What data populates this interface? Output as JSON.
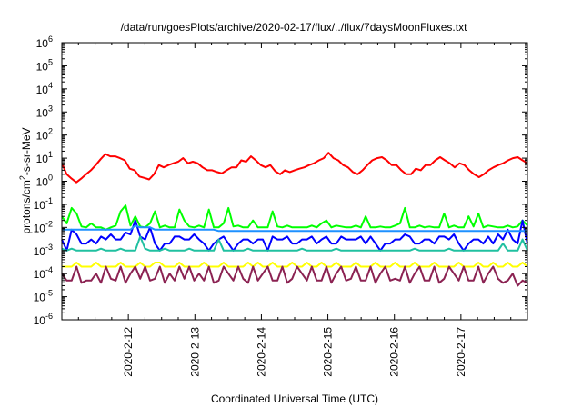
{
  "chart_data": {
    "type": "line",
    "title": "/data/run/goesPlots/archive/2020-02-17/flux/../flux/7daysMoonFluxes.txt",
    "xlabel": "Coordinated Universal Time (UTC)",
    "ylabel": "protons/cm2-s-sr-MeV",
    "ylabel_parts": {
      "base": "protons/cm",
      "sup": "2",
      "rest": "-s-sr-MeV"
    },
    "y_scale": "log",
    "ylim": [
      1e-06,
      1000000.0
    ],
    "y_tick_base": "10",
    "y_tick_exponents": [
      "-6",
      "-5",
      "-4",
      "-3",
      "-2",
      "-1",
      "0",
      "1",
      "2",
      "3",
      "4",
      "5",
      "6"
    ],
    "xlim_days": [
      0,
      7
    ],
    "x_tick_labels": [
      "2020-2-12",
      "2020-2-13",
      "2020-2-14",
      "2020-2-15",
      "2020-2-16",
      "2020-2-17"
    ],
    "x_tick_days": [
      1,
      2,
      3,
      4,
      5,
      6
    ],
    "grid": false,
    "legend": "none",
    "series": [
      {
        "color": "#ff0000",
        "values": [
          6,
          2,
          1.3,
          0.9,
          1.3,
          2,
          3,
          5,
          9,
          15,
          12,
          12,
          10,
          8,
          3.5,
          3,
          1.6,
          1.4,
          1.2,
          2,
          5,
          4,
          5,
          6,
          7,
          10,
          6,
          7,
          6,
          4,
          3,
          3,
          2.5,
          2.2,
          3,
          4,
          4,
          8,
          7,
          12,
          8,
          5,
          4,
          5,
          2.7,
          2,
          3,
          2.5,
          3,
          3.5,
          4,
          5,
          6,
          8,
          10,
          17,
          10,
          8,
          5,
          4,
          2.5,
          2,
          3,
          5,
          8,
          10,
          11,
          8,
          5,
          5,
          3,
          2,
          2,
          3.5,
          3,
          5,
          5,
          8,
          11,
          8,
          6,
          4,
          6,
          5,
          3,
          2,
          1.5,
          2,
          3,
          4,
          5,
          6,
          8,
          10,
          11,
          8,
          6
        ]
      },
      {
        "color": "#00ff00",
        "values": [
          0.03,
          0.015,
          0.07,
          0.04,
          0.011,
          0.01,
          0.015,
          0.01,
          0.01,
          0.008,
          0.01,
          0.012,
          0.05,
          0.09,
          0.012,
          0.03,
          0.011,
          0.01,
          0.015,
          0.05,
          0.01,
          0.012,
          0.01,
          0.01,
          0.06,
          0.02,
          0.011,
          0.01,
          0.012,
          0.01,
          0.06,
          0.01,
          0.01,
          0.015,
          0.07,
          0.011,
          0.012,
          0.01,
          0.01,
          0.02,
          0.01,
          0.01,
          0.01,
          0.05,
          0.011,
          0.01,
          0.012,
          0.01,
          0.01,
          0.01,
          0.01,
          0.012,
          0.01,
          0.015,
          0.02,
          0.01,
          0.012,
          0.011,
          0.01,
          0.01,
          0.012,
          0.01,
          0.03,
          0.01,
          0.01,
          0.011,
          0.01,
          0.01,
          0.012,
          0.015,
          0.07,
          0.01,
          0.01,
          0.012,
          0.01,
          0.011,
          0.01,
          0.01,
          0.04,
          0.01,
          0.012,
          0.01,
          0.01,
          0.03,
          0.011,
          0.04,
          0.01,
          0.012,
          0.011,
          0.01,
          0.01,
          0.012,
          0.01,
          0.011,
          0.02,
          0.012
        ]
      },
      {
        "color": "#0000ff",
        "values": [
          0.003,
          0.001,
          0.008,
          0.005,
          0.002,
          0.002,
          0.003,
          0.002,
          0.004,
          0.003,
          0.005,
          0.003,
          0.003,
          0.006,
          0.005,
          0.02,
          0.004,
          0.003,
          0.01,
          0.002,
          0.001,
          0.002,
          0.002,
          0.004,
          0.004,
          0.003,
          0.003,
          0.005,
          0.003,
          0.002,
          0.001,
          0.002,
          0.003,
          0.004,
          0.002,
          0.001,
          0.002,
          0.003,
          0.003,
          0.002,
          0.003,
          0.003,
          0.001,
          0.004,
          0.003,
          0.003,
          0.004,
          0.002,
          0.002,
          0.003,
          0.003,
          0.004,
          0.002,
          0.003,
          0.004,
          0.002,
          0.002,
          0.004,
          0.003,
          0.003,
          0.003,
          0.004,
          0.002,
          0.004,
          0.002,
          0.001,
          0.002,
          0.002,
          0.003,
          0.003,
          0.005,
          0.004,
          0.002,
          0.002,
          0.003,
          0.003,
          0.002,
          0.004,
          0.004,
          0.003,
          0.005,
          0.002,
          0.001,
          0.002,
          0.003,
          0.003,
          0.002,
          0.004,
          0.002,
          0.005,
          0.003,
          0.008,
          0.003,
          0.002,
          0.02,
          0.002
        ]
      },
      {
        "color": "#1e90ff",
        "values": [
          0.008,
          0.008,
          0.008,
          0.008,
          0.008,
          0.008,
          0.008,
          0.008,
          0.008,
          0.008,
          0.008,
          0.008,
          0.008,
          0.008,
          0.008,
          0.012,
          0.01,
          0.01,
          0.01,
          0.008,
          0.008,
          0.008,
          0.008,
          0.008,
          0.008,
          0.008,
          0.008,
          0.008,
          0.008,
          0.008,
          0.008,
          0.008,
          0.007,
          0.007,
          0.007,
          0.007,
          0.007,
          0.007,
          0.007,
          0.007,
          0.007,
          0.007,
          0.007,
          0.007,
          0.007,
          0.007,
          0.007,
          0.007,
          0.007,
          0.007,
          0.007,
          0.007,
          0.007,
          0.007,
          0.007,
          0.007,
          0.007,
          0.007,
          0.007,
          0.007,
          0.007,
          0.007,
          0.007,
          0.007,
          0.007,
          0.007,
          0.007,
          0.007,
          0.007,
          0.007,
          0.007,
          0.007,
          0.007,
          0.007,
          0.007,
          0.007,
          0.007,
          0.007,
          0.007,
          0.007,
          0.007,
          0.007,
          0.007,
          0.007,
          0.007,
          0.007,
          0.007,
          0.007,
          0.007,
          0.007,
          0.007,
          0.007,
          0.007,
          0.007,
          0.007,
          0.007
        ]
      },
      {
        "color": "#20c0a0",
        "values": [
          0.0012,
          0.001,
          0.0012,
          0.001,
          0.001,
          0.001,
          0.001,
          0.001,
          0.0012,
          0.001,
          0.001,
          0.001,
          0.0012,
          0.001,
          0.001,
          0.001,
          0.004,
          0.0012,
          0.001,
          0.001,
          0.001,
          0.0012,
          0.001,
          0.001,
          0.001,
          0.001,
          0.0012,
          0.001,
          0.001,
          0.001,
          0.001,
          0.001,
          0.003,
          0.001,
          0.001,
          0.001,
          0.001,
          0.001,
          0.0012,
          0.001,
          0.001,
          0.001,
          0.001,
          0.001,
          0.001,
          0.001,
          0.001,
          0.001,
          0.001,
          0.0012,
          0.001,
          0.001,
          0.001,
          0.001,
          0.001,
          0.001,
          0.0012,
          0.001,
          0.001,
          0.001,
          0.001,
          0.001,
          0.001,
          0.001,
          0.001,
          0.001,
          0.001,
          0.001,
          0.001,
          0.001,
          0.001,
          0.001,
          0.0012,
          0.001,
          0.001,
          0.001,
          0.001,
          0.001,
          0.001,
          0.0012,
          0.001,
          0.001,
          0.001,
          0.001,
          0.001,
          0.001,
          0.001,
          0.001,
          0.001,
          0.001,
          0.002,
          0.001,
          0.001,
          0.001,
          0.003,
          0.001
        ]
      },
      {
        "color": "#ffff00",
        "values": [
          0.0002,
          0.0002,
          0.0002,
          0.0003,
          0.0002,
          0.0002,
          0.0002,
          0.0003,
          0.0002,
          0.0002,
          0.0002,
          0.0002,
          0.0003,
          0.0002,
          0.0002,
          0.0002,
          0.0003,
          0.0002,
          0.0002,
          0.0003,
          0.0003,
          0.0002,
          0.0002,
          0.0002,
          0.0003,
          0.0002,
          0.0002,
          0.0002,
          0.0002,
          0.0003,
          0.0002,
          0.0002,
          0.0002,
          0.0003,
          0.0002,
          0.0002,
          0.0002,
          0.0002,
          0.0003,
          0.0002,
          0.0003,
          0.0002,
          0.0002,
          0.0003,
          0.0002,
          0.0002,
          0.0002,
          0.0003,
          0.0002,
          0.0002,
          0.0003,
          0.0002,
          0.0002,
          0.0003,
          0.0002,
          0.0002,
          0.0003,
          0.0002,
          0.0002,
          0.0002,
          0.0003,
          0.0002,
          0.0002,
          0.0002,
          0.0003,
          0.0002,
          0.0002,
          0.0002,
          0.0003,
          0.0002,
          0.0002,
          0.0002,
          0.0003,
          0.0002,
          0.0002,
          0.0002,
          0.0003,
          0.0002,
          0.0002,
          0.0002,
          0.0002,
          0.0003,
          0.0002,
          0.0002,
          0.0002,
          0.0003,
          0.0002,
          0.0002,
          0.0003,
          0.0002,
          0.0002,
          0.0003,
          0.0002,
          0.0002,
          0.0003,
          0.0002
        ]
      },
      {
        "color": "#8b2252",
        "values": [
          0.0001,
          5e-05,
          5e-05,
          0.0002,
          4e-05,
          5e-05,
          5e-05,
          0.0001,
          4e-05,
          0.0002,
          6e-05,
          5e-05,
          0.0002,
          4e-05,
          0.0001,
          0.0002,
          6e-05,
          0.0002,
          5e-05,
          6e-05,
          0.0002,
          4e-05,
          0.0001,
          5e-05,
          0.0002,
          6e-05,
          0.0002,
          5e-05,
          0.0001,
          5e-05,
          0.0002,
          4e-05,
          5e-05,
          0.0002,
          0.0001,
          5e-05,
          0.0002,
          6e-05,
          4e-05,
          0.0002,
          5e-05,
          0.0001,
          0.0002,
          5e-05,
          5e-05,
          0.0002,
          4e-05,
          6e-05,
          0.0002,
          0.0001,
          5e-05,
          0.0002,
          5e-05,
          5e-05,
          0.0002,
          4e-05,
          0.0001,
          0.0002,
          5e-05,
          6e-05,
          0.0002,
          5e-05,
          5e-05,
          0.0002,
          4e-05,
          0.0001,
          0.0002,
          5e-05,
          6e-05,
          5e-05,
          0.0002,
          4e-05,
          0.0001,
          0.0002,
          5e-05,
          5e-05,
          0.0002,
          4e-05,
          6e-05,
          0.0002,
          0.0001,
          5e-05,
          0.0002,
          5e-05,
          5e-05,
          0.0002,
          4e-05,
          0.0001,
          0.0002,
          6e-05,
          4e-05,
          5e-05,
          0.0001,
          3e-05,
          5e-05,
          4e-05
        ]
      }
    ]
  }
}
